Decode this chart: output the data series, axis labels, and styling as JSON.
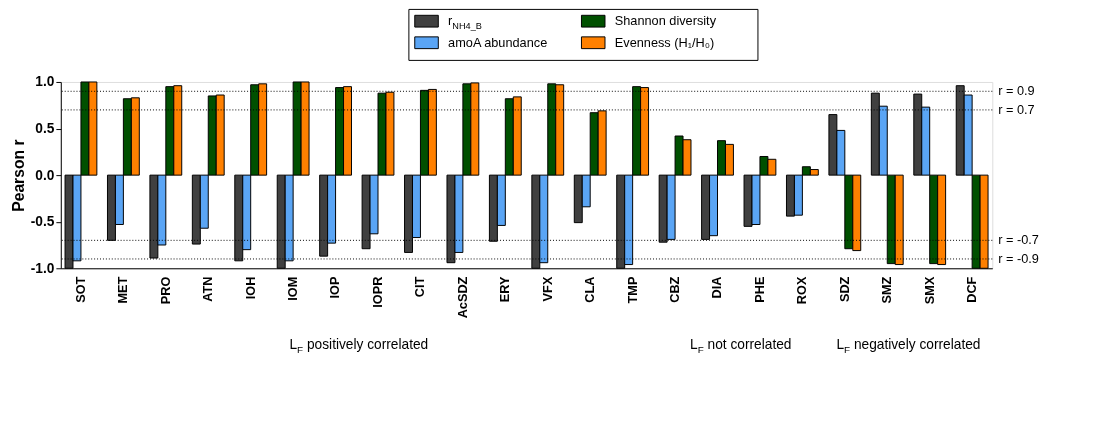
{
  "chart_data": {
    "type": "bar",
    "ylabel": "Pearson r",
    "categories": [
      "SOT",
      "MET",
      "PRO",
      "ATN",
      "IOH",
      "IOM",
      "IOP",
      "IOPR",
      "CIT",
      "AcSDZ",
      "ERY",
      "VFX",
      "CLA",
      "TMP",
      "CBZ",
      "DIA",
      "PHE",
      "ROX",
      "SDZ",
      "SMZ",
      "SMX",
      "DCF"
    ],
    "series": [
      {
        "name": "r$_{NH4_B}$",
        "color": "#404040",
        "values": [
          -1.0,
          -0.7,
          -0.89,
          -0.74,
          -0.92,
          -1.0,
          -0.87,
          -0.79,
          -0.83,
          -0.94,
          -0.71,
          -1.0,
          -0.51,
          -1.0,
          -0.72,
          -0.69,
          -0.55,
          -0.44,
          0.65,
          0.88,
          0.87,
          0.96
        ]
      },
      {
        "name": "amoA abundance",
        "color": "#5aa5f5",
        "values": [
          -0.92,
          -0.53,
          -0.75,
          -0.57,
          -0.8,
          -0.92,
          -0.73,
          -0.63,
          -0.67,
          -0.83,
          -0.54,
          -0.94,
          -0.34,
          -0.96,
          -0.69,
          -0.65,
          -0.53,
          -0.43,
          0.48,
          0.74,
          0.73,
          0.86
        ]
      },
      {
        "name": "Shannon diversity",
        "color": "#005000",
        "values": [
          1.0,
          0.82,
          0.95,
          0.85,
          0.97,
          1.0,
          0.94,
          0.88,
          0.91,
          0.98,
          0.82,
          0.98,
          0.67,
          0.95,
          0.42,
          0.37,
          0.2,
          0.09,
          -0.79,
          -0.95,
          -0.95,
          -1.0
        ]
      },
      {
        "name": "Evenness (H₁/H₀)",
        "color": "#ff8000",
        "values": [
          1.0,
          0.83,
          0.96,
          0.86,
          0.98,
          1.0,
          0.95,
          0.89,
          0.92,
          0.99,
          0.84,
          0.97,
          0.69,
          0.94,
          0.38,
          0.33,
          0.17,
          0.06,
          -0.81,
          -0.96,
          -0.96,
          -1.0
        ]
      }
    ],
    "ylim": [
      -1.0,
      1.0
    ],
    "yticks": [
      {
        "value": -1.0,
        "label": "-1.0"
      },
      {
        "value": -0.5,
        "label": "-0.5"
      },
      {
        "value": 0.0,
        "label": "0.0"
      },
      {
        "value": 0.5,
        "label": "0.5"
      },
      {
        "value": 1.0,
        "label": "1.0"
      }
    ],
    "ref_lines": [
      {
        "axis": "y",
        "value": 0.9,
        "label": "r = 0.9",
        "line_style": "dotted",
        "color": "#000000"
      },
      {
        "axis": "y",
        "value": 0.7,
        "label": "r = 0.7",
        "line_style": "dotted",
        "color": "#000000"
      },
      {
        "axis": "y",
        "value": -0.7,
        "label": "r = -0.7",
        "line_style": "dotted",
        "color": "#000000"
      },
      {
        "axis": "y",
        "value": -0.9,
        "label": "r = -0.9",
        "line_style": "dotted",
        "color": "#000000"
      }
    ],
    "annotations": [
      "L$_{F}$ positively correlated",
      "L$_{F}$ not correlated",
      "L$_{F}$ negatively correlated"
    ],
    "legend": "top",
    "grid": false
  }
}
